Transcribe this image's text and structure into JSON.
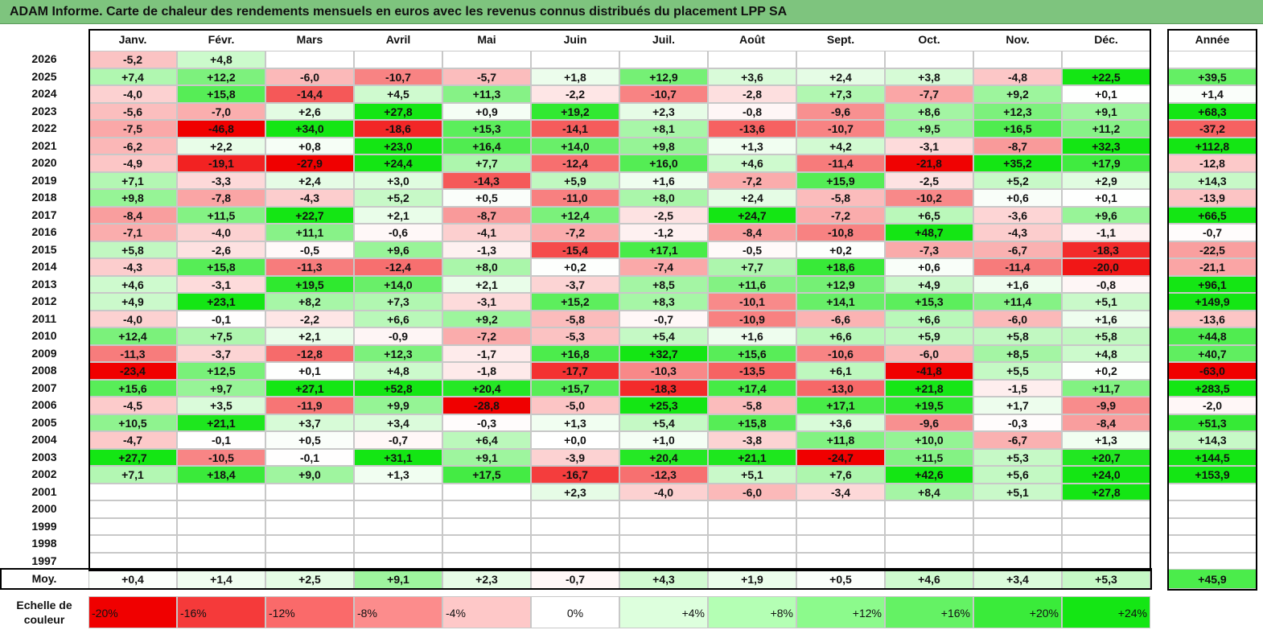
{
  "title": "ADAM Informe. Carte de chaleur des rendements mensuels en euros avec les revenus connus distribués du placement LPP SA",
  "chart_data": {
    "type": "heatmap",
    "months": [
      "Janv.",
      "Févr.",
      "Mars",
      "Avril",
      "Mai",
      "Juin",
      "Juil.",
      "Août",
      "Sept.",
      "Oct.",
      "Nov.",
      "Déc."
    ],
    "year_header": "Année",
    "rows": [
      {
        "year": "2026",
        "values": [
          "-5,2",
          "+4,8",
          "",
          "",
          "",
          "",
          "",
          "",
          "",
          "",
          "",
          ""
        ],
        "annual": ""
      },
      {
        "year": "2025",
        "values": [
          "+7,4",
          "+12,2",
          "-6,0",
          "-10,7",
          "-5,7",
          "+1,8",
          "+12,9",
          "+3,6",
          "+2,4",
          "+3,8",
          "-4,8",
          "+22,5"
        ],
        "annual": "+39,5"
      },
      {
        "year": "2024",
        "values": [
          "-4,0",
          "+15,8",
          "-14,4",
          "+4,5",
          "+11,3",
          "-2,2",
          "-10,7",
          "-2,8",
          "+7,3",
          "-7,7",
          "+9,2",
          "+0,1"
        ],
        "annual": "+1,4"
      },
      {
        "year": "2023",
        "values": [
          "-5,6",
          "-7,0",
          "+2,6",
          "+27,8",
          "+0,9",
          "+19,2",
          "+2,3",
          "-0,8",
          "-9,6",
          "+8,6",
          "+12,3",
          "+9,1"
        ],
        "annual": "+68,3"
      },
      {
        "year": "2022",
        "values": [
          "-7,5",
          "-46,8",
          "+34,0",
          "-18,6",
          "+15,3",
          "-14,1",
          "+8,1",
          "-13,6",
          "-10,7",
          "+9,5",
          "+16,5",
          "+11,2"
        ],
        "annual": "-37,2"
      },
      {
        "year": "2021",
        "values": [
          "-6,2",
          "+2,2",
          "+0,8",
          "+23,0",
          "+16,4",
          "+14,0",
          "+9,8",
          "+1,3",
          "+4,2",
          "-3,1",
          "-8,7",
          "+32,3"
        ],
        "annual": "+112,8"
      },
      {
        "year": "2020",
        "values": [
          "-4,9",
          "-19,1",
          "-27,9",
          "+24,4",
          "+7,7",
          "-12,4",
          "+16,0",
          "+4,6",
          "-11,4",
          "-21,8",
          "+35,2",
          "+17,9"
        ],
        "annual": "-12,8"
      },
      {
        "year": "2019",
        "values": [
          "+7,1",
          "-3,3",
          "+2,4",
          "+3,0",
          "-14,3",
          "+5,9",
          "+1,6",
          "-7,2",
          "+15,9",
          "-2,5",
          "+5,2",
          "+2,9"
        ],
        "annual": "+14,3"
      },
      {
        "year": "2018",
        "values": [
          "+9,8",
          "-7,8",
          "-4,3",
          "+5,2",
          "+0,5",
          "-11,0",
          "+8,0",
          "+2,4",
          "-5,8",
          "-10,2",
          "+0,6",
          "+0,1"
        ],
        "annual": "-13,9"
      },
      {
        "year": "2017",
        "values": [
          "-8,4",
          "+11,5",
          "+22,7",
          "+2,1",
          "-8,7",
          "+12,4",
          "-2,5",
          "+24,7",
          "-7,2",
          "+6,5",
          "-3,6",
          "+9,6"
        ],
        "annual": "+66,5"
      },
      {
        "year": "2016",
        "values": [
          "-7,1",
          "-4,0",
          "+11,1",
          "-0,6",
          "-4,1",
          "-7,2",
          "-1,2",
          "-8,4",
          "-10,8",
          "+48,7",
          "-4,3",
          "-1,1"
        ],
        "annual": "-0,7"
      },
      {
        "year": "2015",
        "values": [
          "+5,8",
          "-2,6",
          "-0,5",
          "+9,6",
          "-1,3",
          "-15,4",
          "+17,1",
          "-0,5",
          "+0,2",
          "-7,3",
          "-6,7",
          "-18,3"
        ],
        "annual": "-22,5"
      },
      {
        "year": "2014",
        "values": [
          "-4,3",
          "+15,8",
          "-11,3",
          "-12,4",
          "+8,0",
          "+0,2",
          "-7,4",
          "+7,7",
          "+18,6",
          "+0,6",
          "-11,4",
          "-20,0"
        ],
        "annual": "-21,1"
      },
      {
        "year": "2013",
        "values": [
          "+4,6",
          "-3,1",
          "+19,5",
          "+14,0",
          "+2,1",
          "-3,7",
          "+8,5",
          "+11,6",
          "+12,9",
          "+4,9",
          "+1,6",
          "-0,8"
        ],
        "annual": "+96,1"
      },
      {
        "year": "2012",
        "values": [
          "+4,9",
          "+23,1",
          "+8,2",
          "+7,3",
          "-3,1",
          "+15,2",
          "+8,3",
          "-10,1",
          "+14,1",
          "+15,3",
          "+11,4",
          "+5,1"
        ],
        "annual": "+149,9"
      },
      {
        "year": "2011",
        "values": [
          "-4,0",
          "-0,1",
          "-2,2",
          "+6,6",
          "+9,2",
          "-5,8",
          "-0,7",
          "-10,9",
          "-6,6",
          "+6,6",
          "-6,0",
          "+1,6"
        ],
        "annual": "-13,6"
      },
      {
        "year": "2010",
        "values": [
          "+12,4",
          "+7,5",
          "+2,1",
          "-0,9",
          "-7,2",
          "-5,3",
          "+5,4",
          "+1,6",
          "+6,6",
          "+5,9",
          "+5,8",
          "+5,8"
        ],
        "annual": "+44,8"
      },
      {
        "year": "2009",
        "values": [
          "-11,3",
          "-3,7",
          "-12,8",
          "+12,3",
          "-1,7",
          "+16,8",
          "+32,7",
          "+15,6",
          "-10,6",
          "-6,0",
          "+8,5",
          "+4,8"
        ],
        "annual": "+40,7"
      },
      {
        "year": "2008",
        "values": [
          "-23,4",
          "+12,5",
          "+0,1",
          "+4,8",
          "-1,8",
          "-17,7",
          "-10,3",
          "-13,5",
          "+6,1",
          "-41,8",
          "+5,5",
          "+0,2"
        ],
        "annual": "-63,0"
      },
      {
        "year": "2007",
        "values": [
          "+15,6",
          "+9,7",
          "+27,1",
          "+52,8",
          "+20,4",
          "+15,7",
          "-18,3",
          "+17,4",
          "-13,0",
          "+21,8",
          "-1,5",
          "+11,7"
        ],
        "annual": "+283,5"
      },
      {
        "year": "2006",
        "values": [
          "-4,5",
          "+3,5",
          "-11,9",
          "+9,9",
          "-28,8",
          "-5,0",
          "+25,3",
          "-5,8",
          "+17,1",
          "+19,5",
          "+1,7",
          "-9,9"
        ],
        "annual": "-2,0"
      },
      {
        "year": "2005",
        "values": [
          "+10,5",
          "+21,1",
          "+3,7",
          "+3,4",
          "-0,3",
          "+1,3",
          "+5,4",
          "+15,8",
          "+3,6",
          "-9,6",
          "-0,3",
          "-8,4"
        ],
        "annual": "+51,3"
      },
      {
        "year": "2004",
        "values": [
          "-4,7",
          "-0,1",
          "+0,5",
          "-0,7",
          "+6,4",
          "+0,0",
          "+1,0",
          "-3,8",
          "+11,8",
          "+10,0",
          "-6,7",
          "+1,3"
        ],
        "annual": "+14,3"
      },
      {
        "year": "2003",
        "values": [
          "+27,7",
          "-10,5",
          "-0,1",
          "+31,1",
          "+9,1",
          "-3,9",
          "+20,4",
          "+21,1",
          "-24,7",
          "+11,5",
          "+5,3",
          "+20,7"
        ],
        "annual": "+144,5"
      },
      {
        "year": "2002",
        "values": [
          "+7,1",
          "+18,4",
          "+9,0",
          "+1,3",
          "+17,5",
          "-16,7",
          "-12,3",
          "+5,1",
          "+7,6",
          "+42,6",
          "+5,6",
          "+24,0"
        ],
        "annual": "+153,9"
      },
      {
        "year": "2001",
        "values": [
          "",
          "",
          "",
          "",
          "",
          "+2,3",
          "-4,0",
          "-6,0",
          "-3,4",
          "+8,4",
          "+5,1",
          "+27,8"
        ],
        "annual": ""
      },
      {
        "year": "2000",
        "values": [
          "",
          "",
          "",
          "",
          "",
          "",
          "",
          "",
          "",
          "",
          "",
          ""
        ],
        "annual": ""
      },
      {
        "year": "1999",
        "values": [
          "",
          "",
          "",
          "",
          "",
          "",
          "",
          "",
          "",
          "",
          "",
          ""
        ],
        "annual": ""
      },
      {
        "year": "1998",
        "values": [
          "",
          "",
          "",
          "",
          "",
          "",
          "",
          "",
          "",
          "",
          "",
          ""
        ],
        "annual": ""
      },
      {
        "year": "1997",
        "values": [
          "",
          "",
          "",
          "",
          "",
          "",
          "",
          "",
          "",
          "",
          "",
          ""
        ],
        "annual": ""
      }
    ],
    "average": {
      "label": "Moy.",
      "values": [
        "+0,4",
        "+1,4",
        "+2,5",
        "+9,1",
        "+2,3",
        "-0,7",
        "+4,3",
        "+1,9",
        "+0,5",
        "+4,6",
        "+3,4",
        "+5,3"
      ],
      "annual": "+45,9"
    },
    "color_scale": {
      "label": [
        "Echelle de",
        "couleur"
      ],
      "stops": [
        "-20%",
        "-16%",
        "-12%",
        "-8%",
        "-4%",
        "0%",
        "+4%",
        "+8%",
        "+12%",
        "+16%",
        "+20%",
        "+24%"
      ],
      "colors": [
        "#f00000",
        "#f53a3a",
        "#fa6a6a",
        "#fc8c8c",
        "#fec8c8",
        "#ffffff",
        "#ddffdd",
        "#b4ffb4",
        "#8cfa8c",
        "#64f264",
        "#3aeb3a",
        "#14e614"
      ]
    }
  }
}
